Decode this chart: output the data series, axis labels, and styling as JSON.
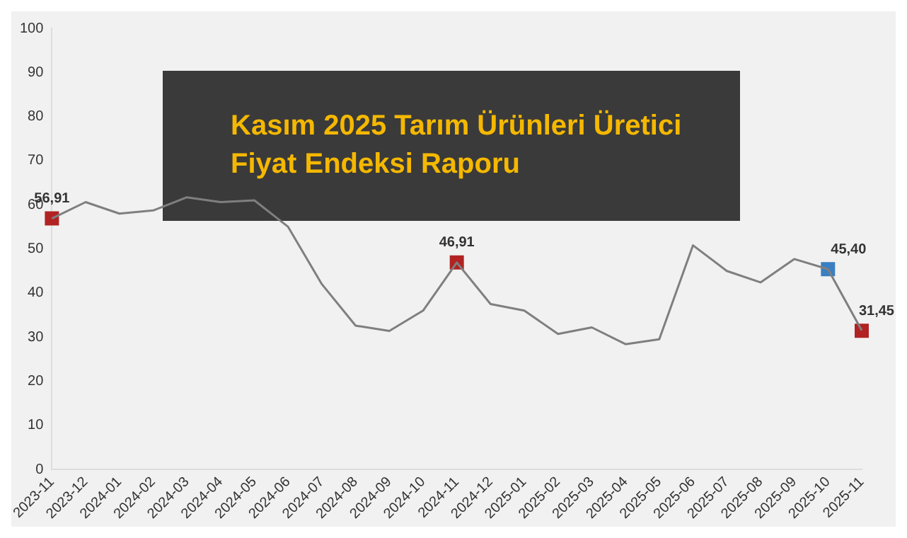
{
  "chart_data": {
    "type": "line",
    "title": "Kasım 2025 Tarım Ürünleri Üretici Fiyat Endeksi Raporu",
    "categories": [
      "2023-11",
      "2023-12",
      "2024-01",
      "2024-02",
      "2024-03",
      "2024-04",
      "2024-05",
      "2024-06",
      "2024-07",
      "2024-08",
      "2024-09",
      "2024-10",
      "2024-11",
      "2024-12",
      "2025-01",
      "2025-02",
      "2025-03",
      "2025-04",
      "2025-05",
      "2025-06",
      "2025-07",
      "2025-08",
      "2025-09",
      "2025-10",
      "2025-11"
    ],
    "series": [
      {
        "color": "#7f7f7f",
        "values": [
          56.9,
          60.6,
          58,
          58.7,
          61.7,
          60.6,
          61,
          55,
          42,
          32.6,
          31.4,
          36,
          46.9,
          37.5,
          36,
          30.7,
          32.2,
          28.4,
          29.5,
          50.8,
          45,
          42.4,
          47.7,
          45.4,
          31.5
        ]
      },
      {
        "type": "scatter",
        "marker": "square",
        "color": "#b22222",
        "values": [
          56.91,
          null,
          null,
          null,
          null,
          null,
          null,
          null,
          null,
          null,
          null,
          null,
          46.91,
          null,
          null,
          null,
          null,
          null,
          null,
          null,
          null,
          null,
          null,
          45.4,
          31.45
        ],
        "colors": [
          "#b22222",
          null,
          null,
          null,
          null,
          null,
          null,
          null,
          null,
          null,
          null,
          null,
          "#b22222",
          null,
          null,
          null,
          null,
          null,
          null,
          null,
          null,
          null,
          null,
          "#3a7fc1",
          "#b22222"
        ],
        "value_labels": [
          "56,91",
          null,
          null,
          null,
          null,
          null,
          null,
          null,
          null,
          null,
          null,
          null,
          "46,91",
          null,
          null,
          null,
          null,
          null,
          null,
          null,
          null,
          null,
          null,
          "45,40",
          "31,45"
        ]
      }
    ],
    "grid": false,
    "legend": false,
    "ylim": [
      0,
      100
    ],
    "yticks": [
      0,
      10,
      20,
      30,
      40,
      50,
      60,
      70,
      80,
      90,
      100
    ],
    "line_style": "solid"
  }
}
